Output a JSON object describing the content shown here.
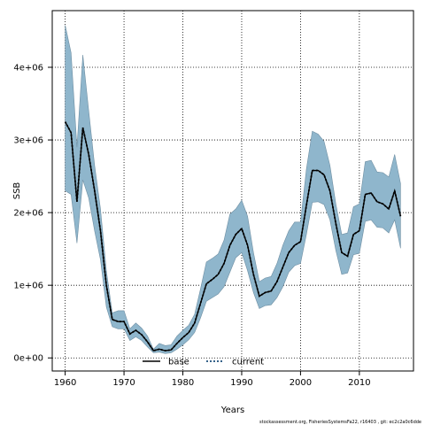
{
  "chart_data": {
    "type": "area",
    "xlabel": "Years",
    "ylabel": "SSB",
    "xlim": [
      1957.8,
      2019.2
    ],
    "ylim": [
      -180000,
      4780000
    ],
    "x_ticks": [
      1960,
      1970,
      1980,
      1990,
      2000,
      2010
    ],
    "x_tick_labels": [
      "1960",
      "1970",
      "1980",
      "1990",
      "2000",
      "2010"
    ],
    "y_ticks": [
      0,
      1000000,
      2000000,
      3000000,
      4000000
    ],
    "y_tick_labels": [
      "0e+00",
      "1e+06",
      "2e+06",
      "3e+06",
      "4e+06"
    ],
    "grid": true,
    "legend_position": "bottom",
    "x": [
      1960,
      1961,
      1962,
      1963,
      1964,
      1965,
      1966,
      1967,
      1968,
      1969,
      1970,
      1971,
      1972,
      1973,
      1974,
      1975,
      1976,
      1977,
      1978,
      1979,
      1980,
      1981,
      1982,
      1983,
      1984,
      1985,
      1986,
      1987,
      1988,
      1989,
      1990,
      1991,
      1992,
      1993,
      1994,
      1995,
      1996,
      1997,
      1998,
      1999,
      2000,
      2001,
      2002,
      2003,
      2004,
      2005,
      2006,
      2007,
      2008,
      2009,
      2010,
      2011,
      2012,
      2013,
      2014,
      2015,
      2016,
      2017
    ],
    "series": [
      {
        "name": "current",
        "style": "dotted",
        "values": [
          3250000,
          3100000,
          2150000,
          3170000,
          2800000,
          2300000,
          1750000,
          1000000,
          530000,
          500000,
          500000,
          330000,
          380000,
          320000,
          220000,
          100000,
          120000,
          100000,
          110000,
          200000,
          280000,
          350000,
          480000,
          750000,
          1020000,
          1080000,
          1150000,
          1300000,
          1550000,
          1700000,
          1780000,
          1550000,
          1150000,
          850000,
          900000,
          920000,
          1050000,
          1250000,
          1450000,
          1550000,
          1600000,
          2100000,
          2580000,
          2580000,
          2520000,
          2300000,
          1850000,
          1450000,
          1400000,
          1700000,
          1750000,
          2250000,
          2270000,
          2150000,
          2120000,
          2050000,
          2300000,
          1950000
        ]
      },
      {
        "name": "base",
        "style": "solid",
        "values": [
          3250000,
          3100000,
          2150000,
          3170000,
          2800000,
          2300000,
          1750000,
          1000000,
          530000,
          500000,
          500000,
          330000,
          380000,
          320000,
          220000,
          100000,
          120000,
          100000,
          110000,
          200000,
          280000,
          350000,
          480000,
          750000,
          1020000,
          1080000,
          1150000,
          1300000,
          1550000,
          1700000,
          1780000,
          1550000,
          1150000,
          850000,
          900000,
          920000,
          1050000,
          1250000,
          1450000,
          1550000,
          1600000,
          2100000,
          2580000,
          2580000,
          2520000,
          2300000,
          1850000,
          1450000,
          1400000,
          1700000,
          1750000,
          2250000,
          2270000,
          2150000,
          2120000,
          2050000,
          2300000,
          1950000
        ]
      }
    ],
    "band": {
      "upper": [
        4580000,
        4200000,
        2900000,
        4170000,
        3400000,
        2650000,
        2050000,
        1200000,
        620000,
        650000,
        650000,
        400000,
        480000,
        410000,
        300000,
        120000,
        200000,
        170000,
        180000,
        300000,
        380000,
        450000,
        600000,
        950000,
        1320000,
        1370000,
        1430000,
        1620000,
        1980000,
        2050000,
        2170000,
        1950000,
        1450000,
        1050000,
        1100000,
        1120000,
        1300000,
        1550000,
        1750000,
        1870000,
        1870000,
        2600000,
        3120000,
        3080000,
        2980000,
        2650000,
        2120000,
        1700000,
        1720000,
        2080000,
        2120000,
        2700000,
        2720000,
        2560000,
        2550000,
        2490000,
        2800000,
        2400000
      ],
      "lower": [
        2300000,
        2250000,
        1580000,
        2450000,
        2200000,
        1750000,
        1350000,
        700000,
        430000,
        400000,
        400000,
        240000,
        290000,
        240000,
        150000,
        70000,
        80000,
        60000,
        70000,
        120000,
        180000,
        250000,
        350000,
        550000,
        780000,
        830000,
        880000,
        980000,
        1180000,
        1380000,
        1450000,
        1200000,
        900000,
        680000,
        720000,
        730000,
        830000,
        980000,
        1180000,
        1270000,
        1300000,
        1700000,
        2140000,
        2150000,
        2110000,
        1900000,
        1480000,
        1150000,
        1170000,
        1420000,
        1440000,
        1880000,
        1900000,
        1800000,
        1790000,
        1720000,
        1900000,
        1510000
      ]
    }
  },
  "legend": {
    "items": [
      {
        "label": "base",
        "style": "solid"
      },
      {
        "label": "current",
        "style": "dotted"
      }
    ]
  },
  "footer": {
    "caption": "stockassessment.org, FisheriesSystemsFa22, r16403 ,  git: ec2c2a0c6dde"
  },
  "colors": {
    "band_fill": "#8fb6cc",
    "band_stroke": "#6f8fa3",
    "line": "#000000",
    "dotted_line": "#1a4d7a",
    "grid": "#000000"
  }
}
